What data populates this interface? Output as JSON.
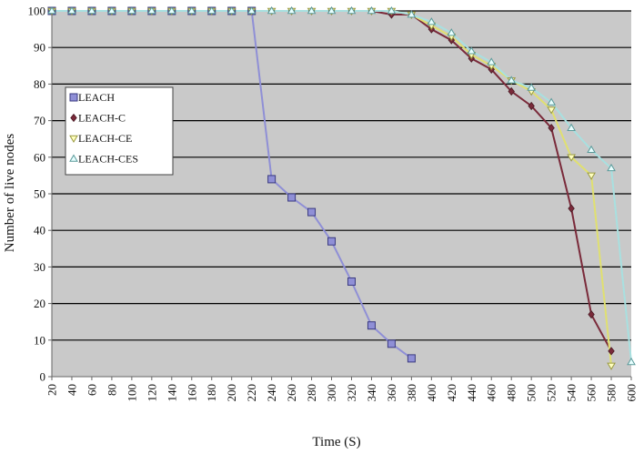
{
  "chart_data": {
    "type": "line",
    "title": "",
    "xlabel": "Time (S)",
    "ylabel": "Number of live nodes",
    "x_ticks": [
      "20",
      "40",
      "60",
      "80",
      "100",
      "120",
      "140",
      "160",
      "180",
      "200",
      "220",
      "240",
      "260",
      "280",
      "300",
      "320",
      "340",
      "360",
      "380",
      "400",
      "420",
      "440",
      "460",
      "480",
      "500",
      "520",
      "540",
      "560",
      "580",
      "600"
    ],
    "y_ticks": [
      "0",
      "10",
      "20",
      "30",
      "40",
      "50",
      "60",
      "70",
      "80",
      "90",
      "100"
    ],
    "xlim": [
      20,
      600
    ],
    "ylim": [
      0,
      100
    ],
    "grid": "horizontal",
    "legend_position": "left",
    "plot_background": "#c9c9c9",
    "series": [
      {
        "name": "LEACH",
        "color": "#8f8fd6",
        "marker": "square",
        "points": [
          [
            20,
            100
          ],
          [
            40,
            100
          ],
          [
            60,
            100
          ],
          [
            80,
            100
          ],
          [
            100,
            100
          ],
          [
            120,
            100
          ],
          [
            140,
            100
          ],
          [
            160,
            100
          ],
          [
            180,
            100
          ],
          [
            200,
            100
          ],
          [
            220,
            100
          ],
          [
            240,
            54
          ],
          [
            260,
            49
          ],
          [
            280,
            45
          ],
          [
            300,
            37
          ],
          [
            320,
            26
          ],
          [
            340,
            14
          ],
          [
            360,
            9
          ],
          [
            380,
            5
          ]
        ]
      },
      {
        "name": "LEACH-C",
        "color": "#7a2a3a",
        "marker": "diamond",
        "points": [
          [
            20,
            100
          ],
          [
            40,
            100
          ],
          [
            60,
            100
          ],
          [
            80,
            100
          ],
          [
            100,
            100
          ],
          [
            120,
            100
          ],
          [
            140,
            100
          ],
          [
            160,
            100
          ],
          [
            180,
            100
          ],
          [
            200,
            100
          ],
          [
            220,
            100
          ],
          [
            240,
            100
          ],
          [
            260,
            100
          ],
          [
            280,
            100
          ],
          [
            300,
            100
          ],
          [
            320,
            100
          ],
          [
            340,
            100
          ],
          [
            360,
            99
          ],
          [
            380,
            99
          ],
          [
            400,
            95
          ],
          [
            420,
            92
          ],
          [
            440,
            87
          ],
          [
            460,
            84
          ],
          [
            480,
            78
          ],
          [
            500,
            74
          ],
          [
            520,
            68
          ],
          [
            540,
            46
          ],
          [
            560,
            17
          ],
          [
            580,
            7
          ]
        ]
      },
      {
        "name": "LEACH-CE",
        "color": "#e0e070",
        "marker": "triangle-down",
        "points": [
          [
            20,
            100
          ],
          [
            40,
            100
          ],
          [
            60,
            100
          ],
          [
            80,
            100
          ],
          [
            100,
            100
          ],
          [
            120,
            100
          ],
          [
            140,
            100
          ],
          [
            160,
            100
          ],
          [
            180,
            100
          ],
          [
            200,
            100
          ],
          [
            220,
            100
          ],
          [
            240,
            100
          ],
          [
            260,
            100
          ],
          [
            280,
            100
          ],
          [
            300,
            100
          ],
          [
            320,
            100
          ],
          [
            340,
            100
          ],
          [
            360,
            100
          ],
          [
            380,
            99
          ],
          [
            400,
            96
          ],
          [
            420,
            93
          ],
          [
            440,
            88
          ],
          [
            460,
            85
          ],
          [
            480,
            81
          ],
          [
            500,
            78
          ],
          [
            520,
            73
          ],
          [
            540,
            60
          ],
          [
            560,
            55
          ],
          [
            580,
            3
          ]
        ]
      },
      {
        "name": "LEACH-CES",
        "color": "#a8e0e0",
        "marker": "triangle-up",
        "points": [
          [
            20,
            100
          ],
          [
            40,
            100
          ],
          [
            60,
            100
          ],
          [
            80,
            100
          ],
          [
            100,
            100
          ],
          [
            120,
            100
          ],
          [
            140,
            100
          ],
          [
            160,
            100
          ],
          [
            180,
            100
          ],
          [
            200,
            100
          ],
          [
            220,
            100
          ],
          [
            240,
            100
          ],
          [
            260,
            100
          ],
          [
            280,
            100
          ],
          [
            300,
            100
          ],
          [
            320,
            100
          ],
          [
            340,
            100
          ],
          [
            360,
            100
          ],
          [
            380,
            99
          ],
          [
            400,
            97
          ],
          [
            420,
            94
          ],
          [
            440,
            89
          ],
          [
            460,
            86
          ],
          [
            480,
            81
          ],
          [
            500,
            79
          ],
          [
            520,
            75
          ],
          [
            540,
            68
          ],
          [
            560,
            62
          ],
          [
            580,
            57
          ],
          [
            600,
            4
          ]
        ]
      }
    ]
  }
}
